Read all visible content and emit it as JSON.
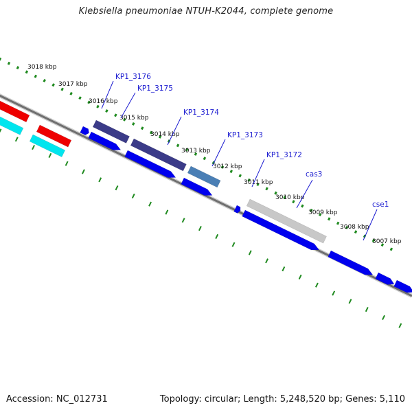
{
  "title": "Klebsiella pneumoniae NTUH-K2044, complete genome",
  "accession": "Accession: NC_012731",
  "summary": "Topology: circular; Length: 5,248,520 bp; Genes: 5,110",
  "colors": {
    "backbone": "#777777",
    "gc_track": "#1f8a1f",
    "gene_forward": "#0000ee",
    "gene_red": "#ee0000",
    "gene_cyan": "#00e5ee",
    "feature_dark": "#3b3b88",
    "feature_steel": "#4a7fb5",
    "feature_gray": "#c8c8c8",
    "label": "#1a1ad0"
  },
  "ticks": [
    {
      "label": "3018 kbp"
    },
    {
      "label": "3017 kbp"
    },
    {
      "label": "3016 kbp"
    },
    {
      "label": "3015 kbp"
    },
    {
      "label": "3014 kbp"
    },
    {
      "label": "3013 kbp"
    },
    {
      "label": "3012 kbp"
    },
    {
      "label": "3011 kbp"
    },
    {
      "label": "3010 kbp"
    },
    {
      "label": "3009 kbp"
    },
    {
      "label": "3008 kbp"
    },
    {
      "label": "3007 kbp"
    }
  ],
  "gene_labels": [
    {
      "name": "KP1_3176"
    },
    {
      "name": "KP1_3175"
    },
    {
      "name": "KP1_3174"
    },
    {
      "name": "KP1_3173"
    },
    {
      "name": "KP1_3172"
    },
    {
      "name": "cas3"
    },
    {
      "name": "cse1"
    }
  ]
}
